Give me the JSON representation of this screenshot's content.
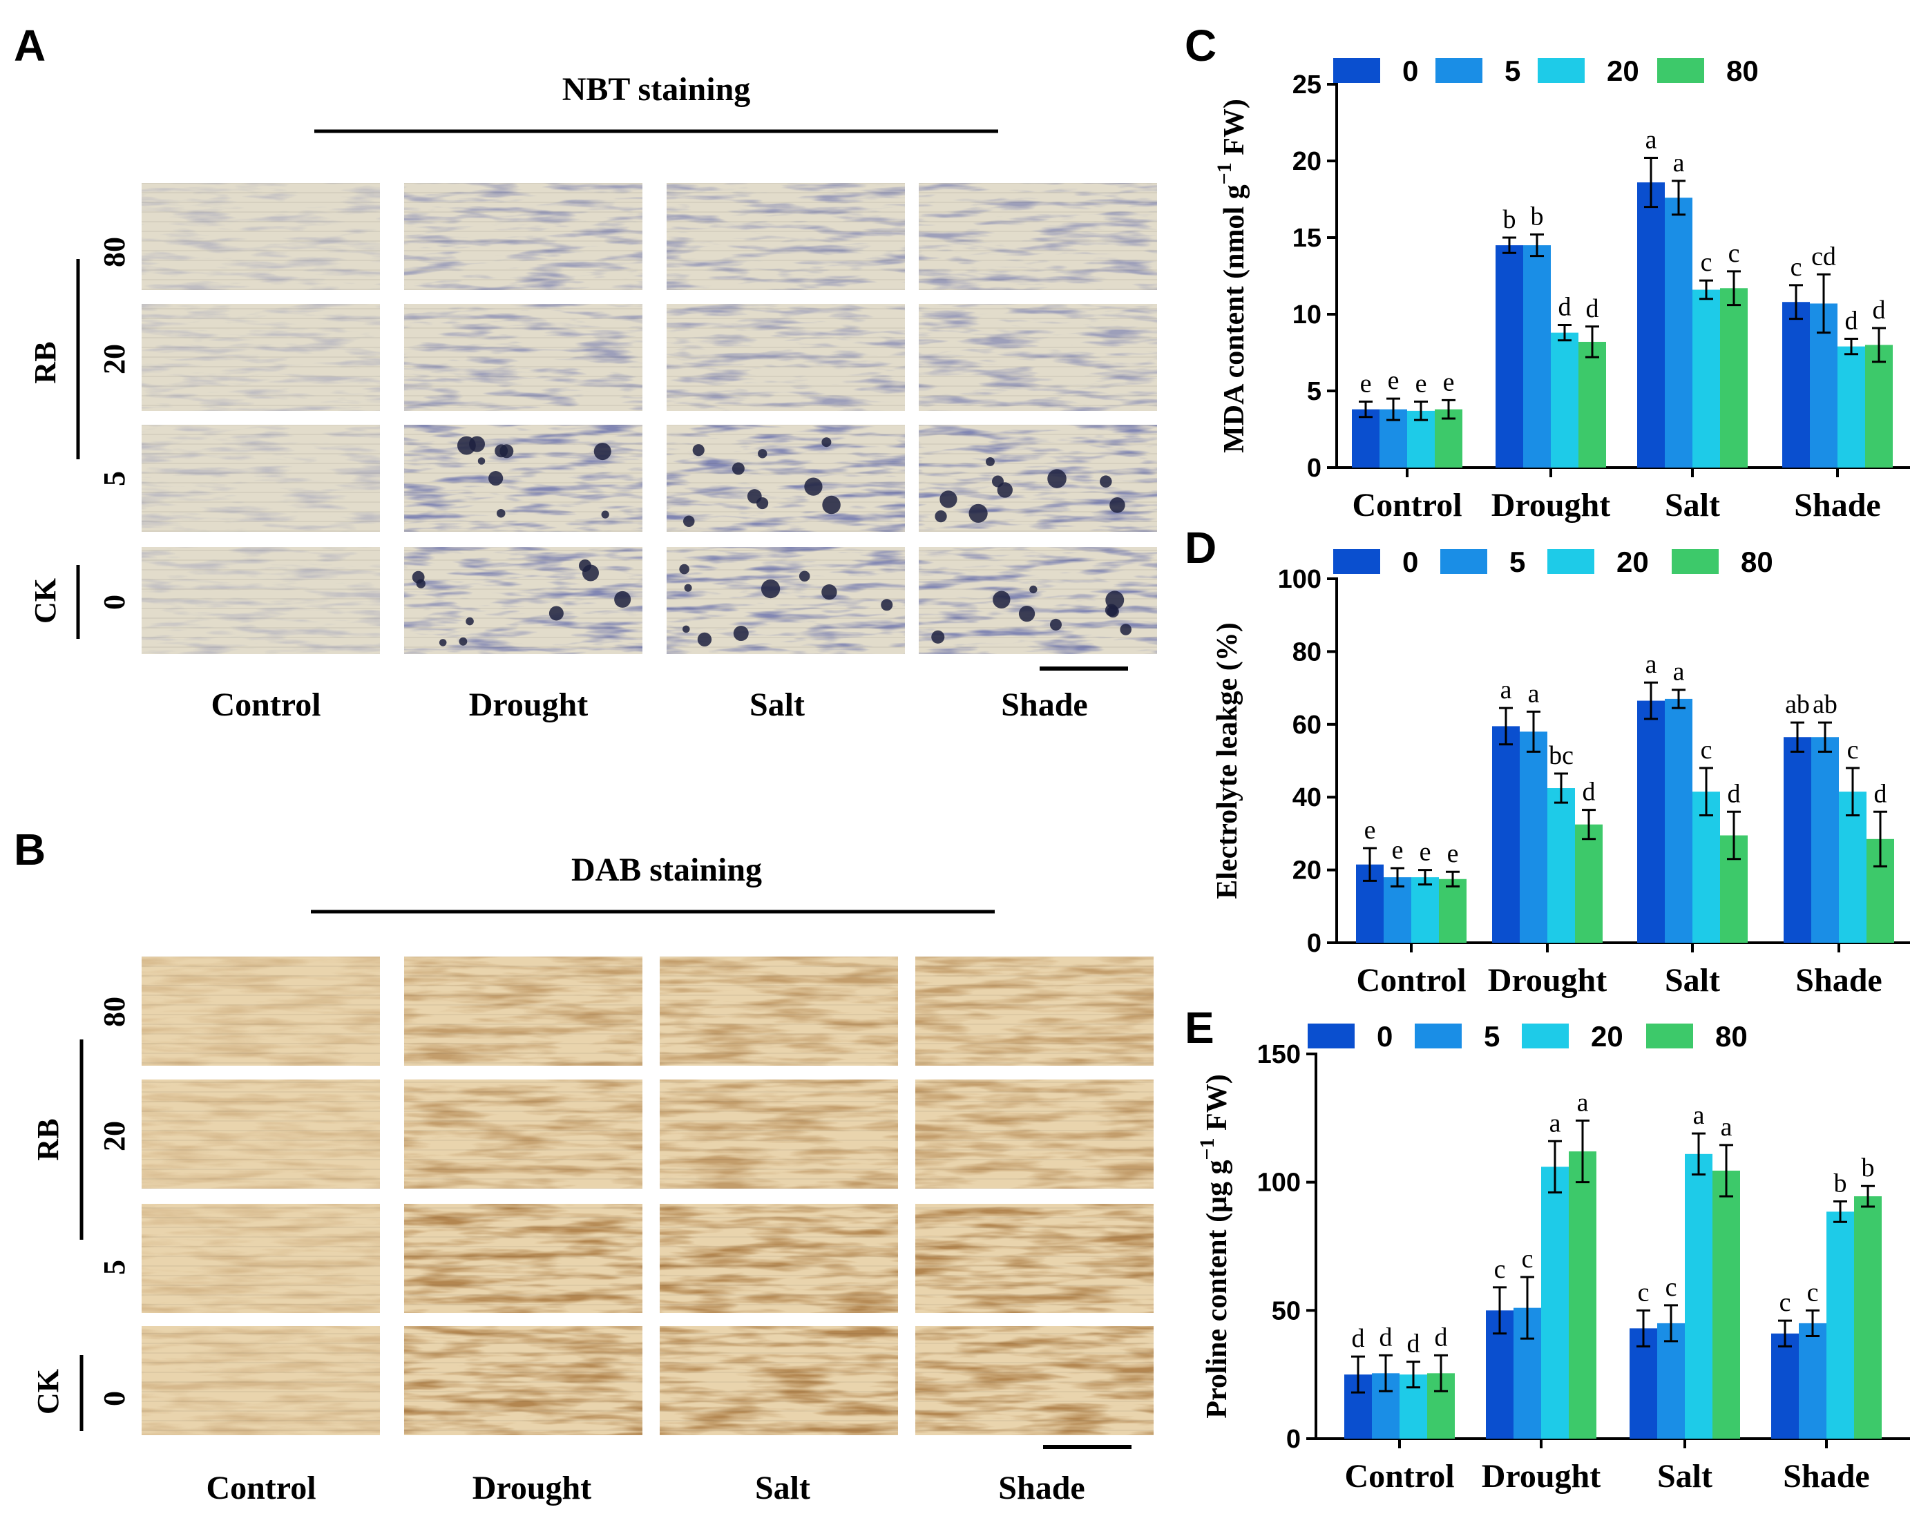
{
  "left_panels": {
    "columns": [
      "Control",
      "Drought",
      "Salt",
      "Shade"
    ],
    "row_levels": [
      "80",
      "20",
      "5",
      "0"
    ],
    "group_labels": {
      "rb": "RB",
      "ck": "CK"
    },
    "panel_a": {
      "letter": "A",
      "title": "NBT staining",
      "tint": "blue"
    },
    "panel_b": {
      "letter": "B",
      "title": "DAB staining",
      "tint": "brown"
    }
  },
  "colors": {
    "s0": "#0a4fcf",
    "s5": "#1a8ee6",
    "s20": "#1ecbe8",
    "s80": "#3dc96a"
  },
  "chart_data": [
    {
      "letter": "C",
      "type": "bar",
      "title": "",
      "ylabel": "MDA content (nmol g",
      "ylabel_sup": "−1",
      "ylabel_end": " FW)",
      "xlabel": "",
      "ylim": [
        0,
        25
      ],
      "yticks": [
        "0",
        "5",
        "10",
        "15",
        "20",
        "25"
      ],
      "categories": [
        "Control",
        "Drought",
        "Salt",
        "Shade"
      ],
      "series": [
        {
          "name": "0",
          "values": [
            3.8,
            14.5,
            18.6,
            10.8
          ],
          "errors": [
            0.5,
            0.5,
            1.6,
            1.1
          ],
          "letters": [
            "e",
            "b",
            "a",
            "c"
          ]
        },
        {
          "name": "5",
          "values": [
            3.8,
            14.5,
            17.6,
            10.7
          ],
          "errors": [
            0.7,
            0.7,
            1.1,
            1.9
          ],
          "letters": [
            "e",
            "b",
            "a",
            "cd"
          ]
        },
        {
          "name": "20",
          "values": [
            3.7,
            8.8,
            11.6,
            7.9
          ],
          "errors": [
            0.6,
            0.5,
            0.6,
            0.5
          ],
          "letters": [
            "e",
            "d",
            "c",
            "d"
          ]
        },
        {
          "name": "80",
          "values": [
            3.8,
            8.2,
            11.7,
            8.0
          ],
          "errors": [
            0.6,
            1.0,
            1.1,
            1.1
          ],
          "letters": [
            "e",
            "d",
            "c",
            "d"
          ]
        }
      ]
    },
    {
      "letter": "D",
      "type": "bar",
      "title": "",
      "ylabel": "Electrolyte leakge (%)",
      "ylabel_sup": "",
      "ylabel_end": "",
      "xlabel": "",
      "ylim": [
        0,
        100
      ],
      "yticks": [
        "0",
        "20",
        "40",
        "60",
        "80",
        "100"
      ],
      "categories": [
        "Control",
        "Drought",
        "Salt",
        "Shade"
      ],
      "series": [
        {
          "name": "0",
          "values": [
            21.5,
            59.5,
            66.5,
            56.5
          ],
          "errors": [
            4.5,
            5.0,
            5.0,
            4.0
          ],
          "letters": [
            "e",
            "a",
            "a",
            "ab"
          ]
        },
        {
          "name": "5",
          "values": [
            18.0,
            58.0,
            67.0,
            56.5
          ],
          "errors": [
            2.5,
            5.5,
            2.5,
            4.0
          ],
          "letters": [
            "e",
            "a",
            "a",
            "ab"
          ]
        },
        {
          "name": "20",
          "values": [
            18.0,
            42.5,
            41.5,
            41.5
          ],
          "errors": [
            2.0,
            4.0,
            6.5,
            6.5
          ],
          "letters": [
            "e",
            "bc",
            "c",
            "c"
          ]
        },
        {
          "name": "80",
          "values": [
            17.5,
            32.5,
            29.5,
            28.5
          ],
          "errors": [
            2.0,
            4.0,
            6.5,
            7.5
          ],
          "letters": [
            "e",
            "d",
            "d",
            "d"
          ]
        }
      ]
    },
    {
      "letter": "E",
      "type": "bar",
      "title": "",
      "ylabel": "Proline content (μg g",
      "ylabel_sup": "−1",
      "ylabel_end": " FW)",
      "xlabel": "",
      "ylim": [
        0,
        150
      ],
      "yticks": [
        "0",
        "50",
        "100",
        "150"
      ],
      "categories": [
        "Control",
        "Drought",
        "Salt",
        "Shade"
      ],
      "series": [
        {
          "name": "0",
          "values": [
            25,
            50,
            43,
            41
          ],
          "errors": [
            7,
            9,
            7,
            5
          ],
          "letters": [
            "d",
            "c",
            "c",
            "c"
          ]
        },
        {
          "name": "5",
          "values": [
            25.5,
            51,
            45,
            45
          ],
          "errors": [
            7,
            12,
            7,
            5
          ],
          "letters": [
            "d",
            "c",
            "c",
            "c"
          ]
        },
        {
          "name": "20",
          "values": [
            25,
            106,
            111,
            88.5
          ],
          "errors": [
            5,
            10,
            8,
            4
          ],
          "letters": [
            "d",
            "a",
            "a",
            "b"
          ]
        },
        {
          "name": "80",
          "values": [
            25.5,
            112,
            104.5,
            94.5
          ],
          "errors": [
            7,
            12,
            10,
            4
          ],
          "letters": [
            "d",
            "a",
            "a",
            "b"
          ]
        }
      ]
    }
  ]
}
